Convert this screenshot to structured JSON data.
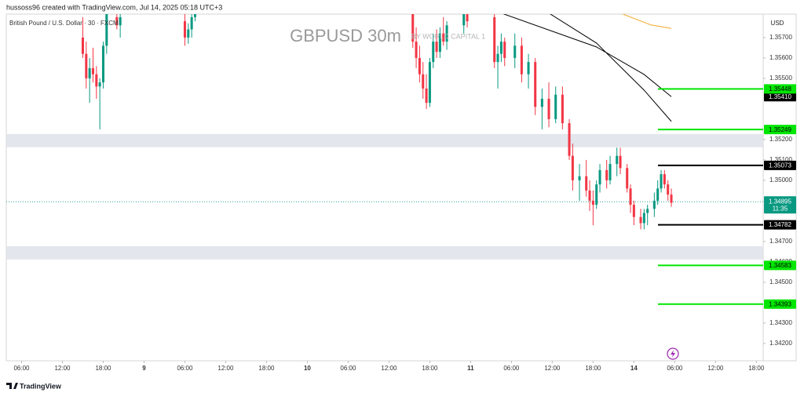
{
  "header": "hussoss96 created with TradingView.com, Jul 14, 2025 05:18 UTC+3",
  "footer": "TradingView",
  "chart_data": {
    "type": "candlestick",
    "title": "GBPUSD 30m",
    "subtitle": "BY WORLD CAPITAL 1",
    "symbol_label": "British Pound / U.S. Dollar · 30 · FXCM",
    "currency": "USD",
    "up_color": "#089981",
    "down_color": "#f23645",
    "x": [
      18,
      19,
      20,
      21,
      22,
      23,
      24,
      25,
      28,
      29,
      48,
      49,
      50,
      51,
      115,
      116,
      117,
      118,
      119,
      120,
      121,
      122,
      123,
      124,
      125,
      130,
      131,
      139,
      140,
      141,
      142,
      145,
      147,
      149,
      151,
      153,
      155,
      157,
      159,
      161,
      162,
      164,
      166,
      167,
      168,
      169,
      170,
      172,
      173,
      175,
      176,
      178,
      179,
      180,
      182,
      183,
      184,
      186,
      187,
      188,
      189,
      190,
      191
    ],
    "open": [
      1.357,
      1.3562,
      1.355,
      1.3555,
      1.3552,
      1.3546,
      1.3548,
      1.3566,
      1.358,
      1.3576,
      1.3578,
      1.357,
      1.3574,
      1.358,
      1.3585,
      1.3568,
      1.356,
      1.3552,
      1.3545,
      1.3538,
      1.3558,
      1.3568,
      1.3563,
      1.3572,
      1.3568,
      1.3576,
      1.3582,
      1.358,
      1.3558,
      1.3562,
      1.3568,
      1.356,
      1.3566,
      1.3552,
      1.3558,
      1.3536,
      1.354,
      1.353,
      1.3542,
      1.3528,
      1.3512,
      1.35,
      1.3502,
      1.3495,
      1.349,
      1.3488,
      1.3498,
      1.3505,
      1.35,
      1.3508,
      1.3512,
      1.3506,
      1.3496,
      1.3488,
      1.3482,
      1.3479,
      1.3484,
      1.3486,
      1.349,
      1.3496,
      1.3503,
      1.3498,
      1.3493
    ],
    "high": [
      1.358,
      1.3568,
      1.356,
      1.3565,
      1.3556,
      1.355,
      1.3568,
      1.3585,
      1.359,
      1.3582,
      1.3582,
      1.3577,
      1.3582,
      1.359,
      1.3588,
      1.3575,
      1.3566,
      1.3558,
      1.3552,
      1.356,
      1.3572,
      1.3574,
      1.3575,
      1.358,
      1.3578,
      1.3585,
      1.359,
      1.3584,
      1.3566,
      1.3572,
      1.357,
      1.3572,
      1.357,
      1.3562,
      1.356,
      1.3545,
      1.3548,
      1.3546,
      1.3546,
      1.353,
      1.3518,
      1.3508,
      1.351,
      1.35,
      1.3495,
      1.35,
      1.3508,
      1.351,
      1.3512,
      1.3516,
      1.3516,
      1.3508,
      1.3498,
      1.349,
      1.3486,
      1.3486,
      1.3488,
      1.3494,
      1.35,
      1.3505,
      1.3505,
      1.35,
      1.3496
    ],
    "low": [
      1.356,
      1.3545,
      1.3538,
      1.3548,
      1.354,
      1.3525,
      1.3545,
      1.3562,
      1.3574,
      1.357,
      1.3566,
      1.3567,
      1.357,
      1.3578,
      1.3565,
      1.3555,
      1.3548,
      1.354,
      1.3535,
      1.3536,
      1.3555,
      1.356,
      1.356,
      1.3566,
      1.3564,
      1.3572,
      1.3575,
      1.3555,
      1.3545,
      1.3558,
      1.3556,
      1.3555,
      1.3548,
      1.3545,
      1.3532,
      1.3525,
      1.3526,
      1.3528,
      1.3525,
      1.351,
      1.3495,
      1.349,
      1.3492,
      1.3485,
      1.3478,
      1.3486,
      1.3494,
      1.3496,
      1.3498,
      1.3502,
      1.3503,
      1.3494,
      1.3484,
      1.3478,
      1.3476,
      1.3476,
      1.3478,
      1.3482,
      1.3488,
      1.3494,
      1.3496,
      1.349,
      1.3487
    ],
    "close": [
      1.3562,
      1.355,
      1.3555,
      1.3552,
      1.3546,
      1.3548,
      1.3566,
      1.3582,
      1.3576,
      1.358,
      1.357,
      1.3574,
      1.358,
      1.3586,
      1.3568,
      1.356,
      1.3552,
      1.3545,
      1.3538,
      1.3558,
      1.3568,
      1.3563,
      1.3572,
      1.3568,
      1.3576,
      1.3582,
      1.3578,
      1.3558,
      1.3562,
      1.3568,
      1.356,
      1.3566,
      1.3552,
      1.3558,
      1.3536,
      1.354,
      1.353,
      1.3542,
      1.3528,
      1.3512,
      1.35,
      1.3502,
      1.3495,
      1.349,
      1.3488,
      1.3498,
      1.3505,
      1.35,
      1.3508,
      1.3512,
      1.3506,
      1.3496,
      1.3488,
      1.3482,
      1.3479,
      1.3484,
      1.3486,
      1.349,
      1.3496,
      1.3503,
      1.3498,
      1.3493,
      1.3489
    ],
    "xlim": [
      -4.5,
      218
    ],
    "xticks": [
      {
        "value": 0,
        "label": "06:00"
      },
      {
        "value": 12,
        "label": "12:00"
      },
      {
        "value": 24,
        "label": "18:00"
      },
      {
        "value": 36,
        "label": "9"
      },
      {
        "value": 48,
        "label": "06:00"
      },
      {
        "value": 60,
        "label": "12:00"
      },
      {
        "value": 72,
        "label": "18:00"
      },
      {
        "value": 84,
        "label": "10"
      },
      {
        "value": 96,
        "label": "06:00"
      },
      {
        "value": 108,
        "label": "12:00"
      },
      {
        "value": 120,
        "label": "18:00"
      },
      {
        "value": 132,
        "label": "11"
      },
      {
        "value": 144,
        "label": "06:00"
      },
      {
        "value": 156,
        "label": "12:00"
      },
      {
        "value": 168,
        "label": "18:00"
      },
      {
        "value": 180,
        "label": "14"
      },
      {
        "value": 192,
        "label": "06:00"
      },
      {
        "value": 204,
        "label": "12:00"
      },
      {
        "value": 216,
        "label": "18:00"
      }
    ],
    "ylim": [
      1.34115,
      1.35815
    ],
    "yticks": [
      {
        "value": 1.357,
        "label": "1.35700"
      },
      {
        "value": 1.356,
        "label": "1.35600"
      },
      {
        "value": 1.355,
        "label": "1.35500"
      },
      {
        "value": 1.352,
        "label": "1.35200"
      },
      {
        "value": 1.351,
        "label": "1.35100"
      },
      {
        "value": 1.35,
        "label": "1.35000"
      },
      {
        "value": 1.347,
        "label": "1.34700"
      },
      {
        "value": 1.346,
        "label": "1.34600"
      },
      {
        "value": 1.345,
        "label": "1.34500"
      },
      {
        "value": 1.343,
        "label": "1.34300"
      },
      {
        "value": 1.342,
        "label": "1.34200"
      }
    ],
    "moving_averages": [
      {
        "color": "#000000",
        "x": [
          141,
          169,
          183,
          191
        ],
        "values": [
          1.3582,
          1.35654,
          1.35519,
          1.3541
        ],
        "value_labels": [
          null,
          null,
          null,
          "1.35410"
        ]
      },
      {
        "color": "#000000",
        "x": [
          155,
          169,
          183,
          191
        ],
        "values": [
          1.3582,
          1.35673,
          1.35442,
          1.35289
        ],
        "value_labels": [
          null,
          null,
          null,
          null
        ]
      },
      {
        "color": "#f5a623",
        "x": [
          176,
          185,
          191
        ],
        "values": [
          1.3582,
          1.35762,
          1.35745
        ],
        "value_labels": [
          null,
          null,
          null
        ]
      }
    ],
    "levels": {
      "values": [
        1.35448,
        1.35249,
        1.34583,
        1.34393,
        1.35073,
        1.34782
      ],
      "colors": [
        "#00e600",
        "#00e600",
        "#00e600",
        "#00e600",
        "#000000",
        "#000000"
      ]
    },
    "zones": [
      {
        "from": 1.35162,
        "to": 1.35227
      },
      {
        "from": 1.34612,
        "to": 1.34677
      }
    ],
    "last_price": {
      "value": 1.34895,
      "countdown": "11:35",
      "color": "#089981"
    }
  }
}
